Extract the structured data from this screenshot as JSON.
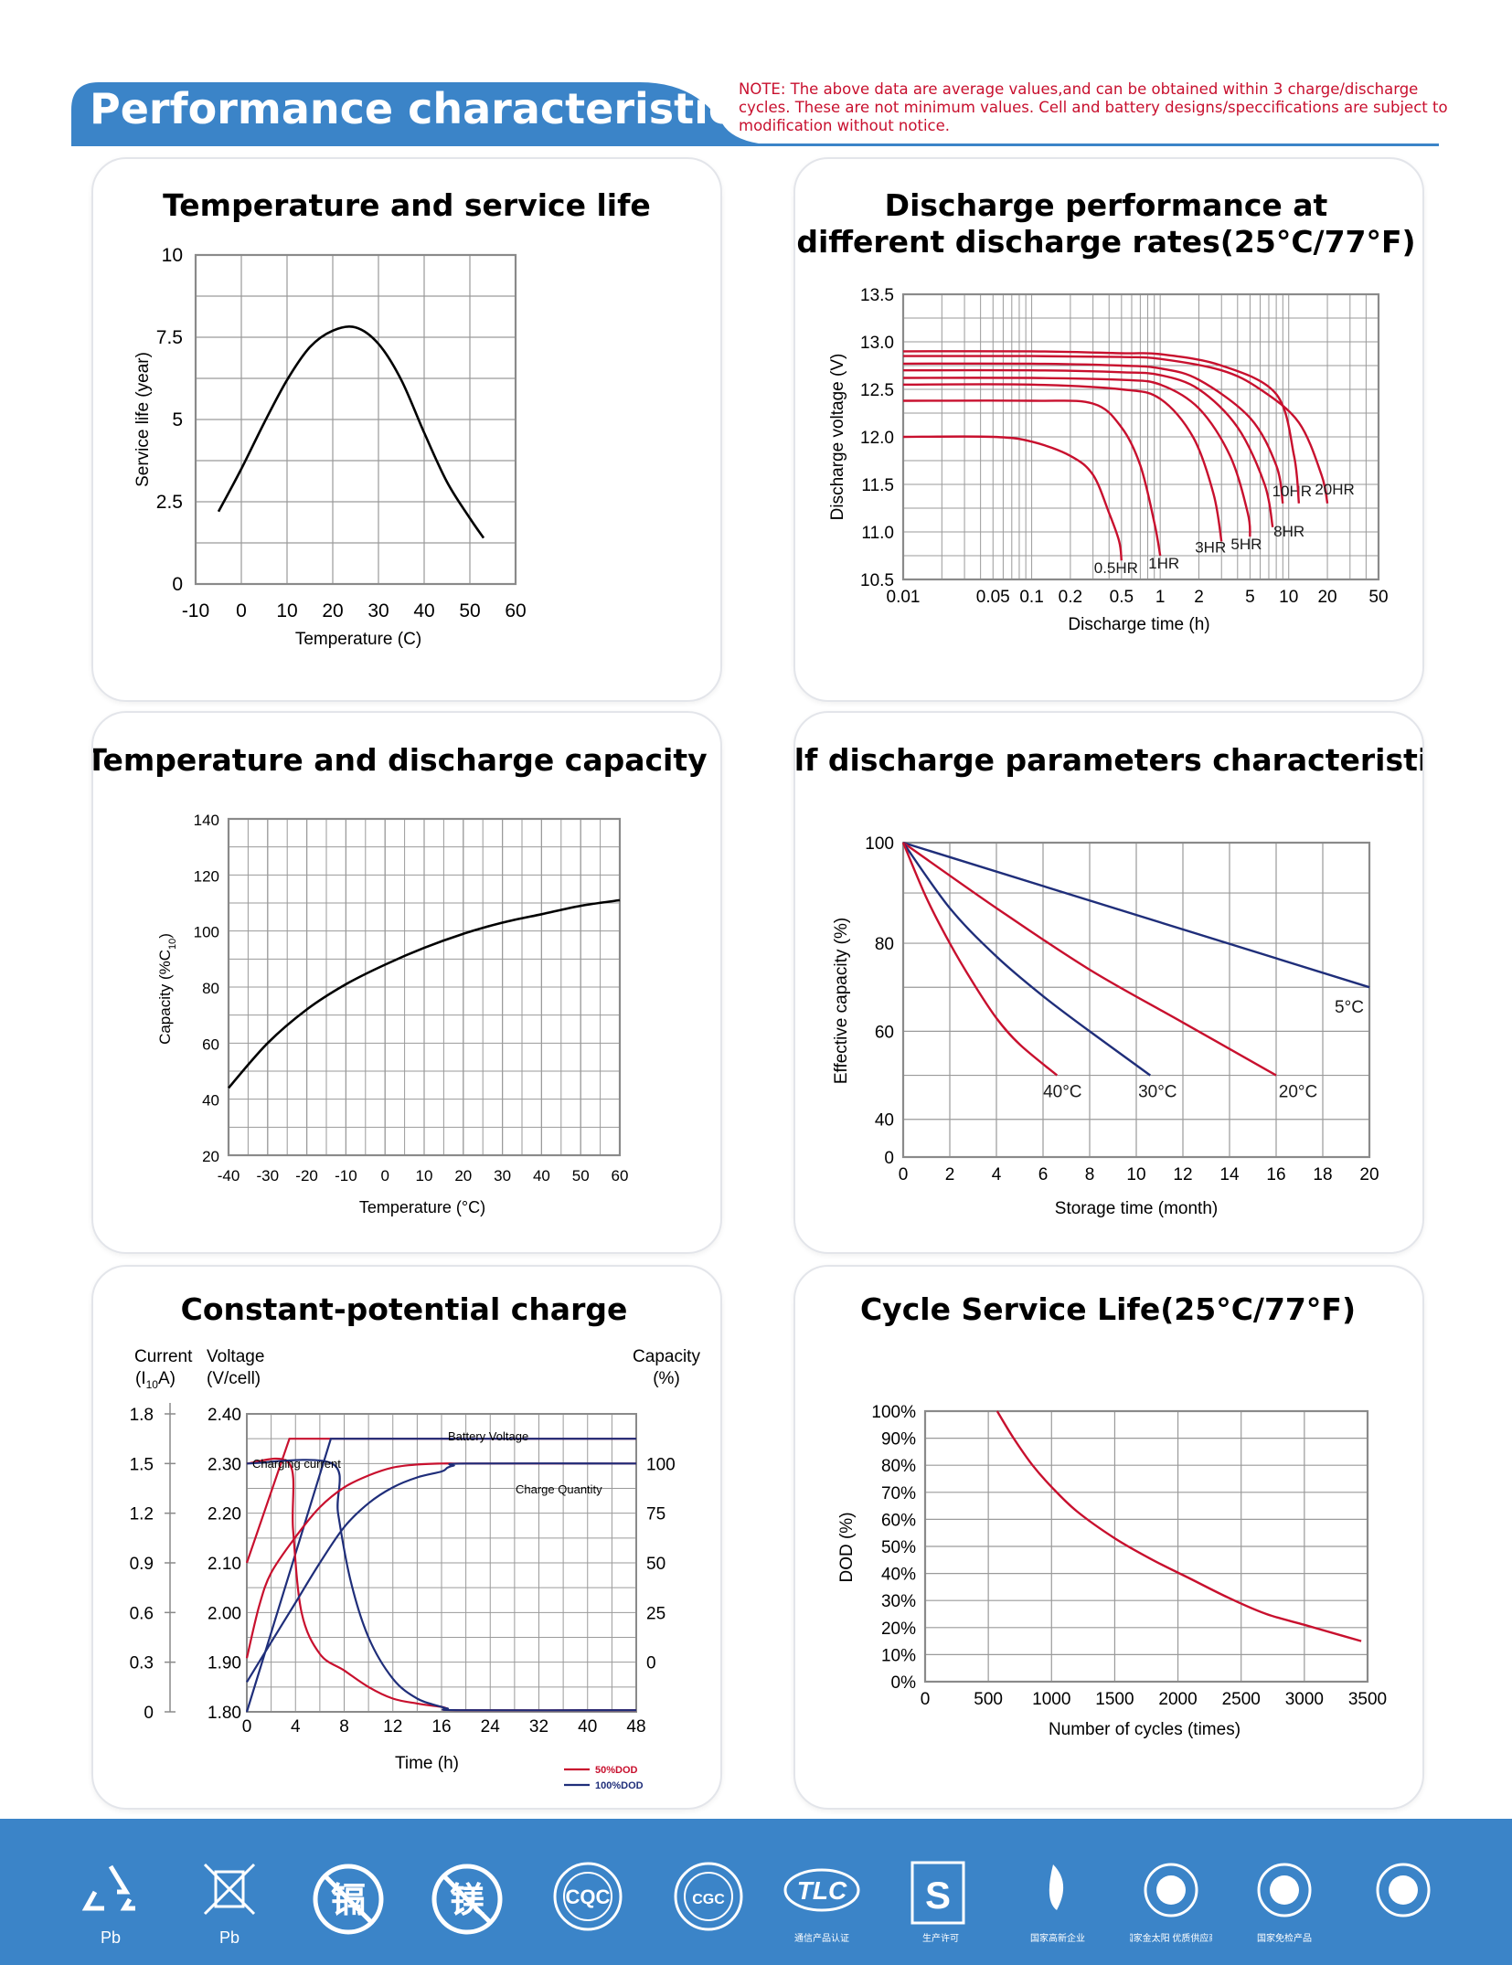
{
  "header": {
    "title": "Performance characteristics",
    "note": "NOTE: The above data are average values,and can be obtained within 3 charge/discharge cycles. These are not minimum values. Cell and battery designs/speccifications are subject to modification without notice."
  },
  "colors": {
    "accent_blue": "#3b84c8",
    "curve_red": "#c8102e",
    "curve_navy": "#1f2e7a",
    "grid": "#9a9a9a"
  },
  "chart_data": [
    {
      "id": "temp-life",
      "type": "line",
      "title": "Temperature and service life",
      "xlabel": "Temperature (C)",
      "ylabel": "Service life (year)",
      "xlim": [
        -10,
        60
      ],
      "ylim": [
        0,
        10
      ],
      "xticks": [
        "-10",
        "0",
        "10",
        "20",
        "30",
        "40",
        "50",
        "60"
      ],
      "yticks": [
        "0",
        "2.5",
        "5",
        "7.5",
        "10"
      ],
      "grid": true,
      "series": [
        {
          "color": "#000000",
          "x": [
            -5,
            0,
            5,
            10,
            15,
            20,
            25,
            30,
            35,
            40,
            45,
            50,
            53
          ],
          "y": [
            2.2,
            3.5,
            4.9,
            6.2,
            7.2,
            7.7,
            7.8,
            7.3,
            6.2,
            4.6,
            3.1,
            2.0,
            1.4
          ]
        }
      ]
    },
    {
      "id": "discharge-rates",
      "type": "line",
      "title_line1": "Discharge performance at",
      "title_line2": "different discharge rates(25°C/77°F)",
      "xlabel": "Discharge time (h)",
      "ylabel": "Discharge voltage (V)",
      "xscale": "log",
      "xlim": [
        0.01,
        50
      ],
      "ylim": [
        10.5,
        13.5
      ],
      "xticks": [
        "0.01",
        "0.05",
        "0.1",
        "0.2",
        "0.5",
        "1",
        "2",
        "5",
        "10",
        "20",
        "50"
      ],
      "yticks": [
        "10.5",
        "11.0",
        "11.5",
        "12.0",
        "12.5",
        "13.0",
        "13.5"
      ],
      "grid": true,
      "series": [
        {
          "name": "0.5HR",
          "x": [
            0.01,
            0.05,
            0.1,
            0.2,
            0.3,
            0.4,
            0.48,
            0.5
          ],
          "y": [
            12.0,
            12.0,
            11.95,
            11.8,
            11.6,
            11.2,
            10.9,
            10.7
          ]
        },
        {
          "name": "1HR",
          "x": [
            0.01,
            0.1,
            0.3,
            0.5,
            0.7,
            0.9,
            1.0
          ],
          "y": [
            12.38,
            12.38,
            12.35,
            12.1,
            11.7,
            11.1,
            10.75
          ]
        },
        {
          "name": "3HR",
          "x": [
            0.01,
            0.1,
            0.5,
            1.0,
            1.8,
            2.6,
            3.0
          ],
          "y": [
            12.55,
            12.55,
            12.5,
            12.4,
            12.0,
            11.4,
            10.9
          ]
        },
        {
          "name": "5HR",
          "x": [
            0.01,
            0.1,
            0.5,
            1.0,
            2.0,
            3.5,
            4.8,
            5.0
          ],
          "y": [
            12.62,
            12.62,
            12.6,
            12.55,
            12.3,
            11.8,
            11.2,
            10.95
          ]
        },
        {
          "name": "8HR",
          "x": [
            0.01,
            0.1,
            0.5,
            1.0,
            2.0,
            4.0,
            6.5,
            7.5
          ],
          "y": [
            12.7,
            12.7,
            12.68,
            12.65,
            12.5,
            12.1,
            11.5,
            11.05
          ]
        },
        {
          "name": "10HR",
          "x": [
            0.01,
            0.1,
            0.5,
            1.0,
            2.0,
            5.0,
            8.0,
            9.0
          ],
          "y": [
            12.77,
            12.77,
            12.75,
            12.72,
            12.6,
            12.2,
            11.7,
            11.3
          ]
        },
        {
          "name": "20HR",
          "x": [
            0.01,
            0.1,
            0.5,
            1.0,
            3.0,
            6.0,
            12.0,
            18.0,
            20.0
          ],
          "y": [
            12.85,
            12.85,
            12.84,
            12.82,
            12.7,
            12.5,
            12.15,
            11.6,
            11.3
          ]
        },
        {
          "x": [
            0.01,
            0.1,
            0.5,
            1.0,
            3.0,
            8.0,
            11.0,
            12.0
          ],
          "y": [
            12.9,
            12.9,
            12.88,
            12.87,
            12.75,
            12.45,
            11.8,
            11.3
          ]
        }
      ]
    },
    {
      "id": "temp-capacity",
      "type": "line",
      "title": "Temperature and discharge capacity",
      "xlabel": "Temperature (°C)",
      "ylabel": "Capacity (%C10)",
      "xlim": [
        -40,
        60
      ],
      "ylim": [
        20,
        140
      ],
      "xticks": [
        "-40",
        "-30",
        "-20",
        "-10",
        "0",
        "10",
        "20",
        "30",
        "40",
        "50",
        "60"
      ],
      "yticks": [
        "20",
        "40",
        "60",
        "80",
        "100",
        "120",
        "140"
      ],
      "grid": true,
      "series": [
        {
          "color": "#000000",
          "x": [
            -40,
            -30,
            -20,
            -10,
            0,
            10,
            20,
            30,
            40,
            50,
            60
          ],
          "y": [
            44,
            60,
            72,
            81,
            88,
            94,
            99,
            103,
            106,
            109,
            111
          ]
        }
      ]
    },
    {
      "id": "self-discharge",
      "type": "line",
      "title": "Self discharge parameters characteristics",
      "xlabel": "Storage time (month)",
      "ylabel": "Effective capacity (%)",
      "xlim": [
        0,
        20
      ],
      "xticks": [
        "0",
        "2",
        "4",
        "6",
        "8",
        "10",
        "12",
        "14",
        "16",
        "18",
        "20"
      ],
      "yticks": [
        "0",
        "40",
        "60",
        "80",
        "100"
      ],
      "grid": true,
      "series": [
        {
          "name": "5°C",
          "color": "#1f2e7a",
          "x": [
            0,
            20
          ],
          "y": [
            100,
            70
          ]
        },
        {
          "name": "20°C",
          "color": "#c8102e",
          "x": [
            0,
            4,
            8,
            12,
            16
          ],
          "y": [
            100,
            87,
            74,
            62,
            50
          ]
        },
        {
          "name": "30°C",
          "color": "#1f2e7a",
          "x": [
            0,
            2,
            4,
            6,
            8,
            10.6
          ],
          "y": [
            100,
            87,
            77,
            68,
            60,
            50
          ]
        },
        {
          "name": "40°C",
          "color": "#c8102e",
          "x": [
            0,
            1,
            2,
            3,
            4,
            5,
            6.6
          ],
          "y": [
            100,
            89,
            80,
            71,
            63,
            57,
            50
          ]
        }
      ]
    },
    {
      "id": "constant-charge",
      "type": "line",
      "title": "Constant-potential charge",
      "xlabel": "Time (h)",
      "axis_left_title_1": "Current",
      "axis_left_title_1b": "(I",
      "axis_left_title_sub": "10",
      "axis_left_title_1c": "A)",
      "axis_left_title_2": "Voltage",
      "axis_left_title_2b": "(V/cell)",
      "axis_right_title": "Capacity",
      "axis_right_title_b": "(%)",
      "current_ticks": [
        "0",
        "0.3",
        "0.6",
        "0.9",
        "1.2",
        "1.5",
        "1.8"
      ],
      "voltage_ticks": [
        "1.80",
        "1.90",
        "2.00",
        "2.10",
        "2.20",
        "2.30",
        "2.40"
      ],
      "capacity_ticks": [
        "0",
        "25",
        "50",
        "75",
        "100"
      ],
      "xticks": [
        "0",
        "4",
        "8",
        "12",
        "16",
        "24",
        "32",
        "40",
        "48"
      ],
      "labels": {
        "battery_voltage": "Battery Voltage",
        "charging_current": "Charging current",
        "charge_quantity": "Charge Quantity"
      },
      "legend": [
        {
          "name": "50%DOD",
          "color": "#c8102e"
        },
        {
          "name": "100%DOD",
          "color": "#1f2e7a"
        }
      ],
      "series": [
        {
          "name": "voltage-50",
          "x_pos": [
            0,
            3.5,
            4,
            48
          ],
          "voltage": [
            2.1,
            2.35,
            2.35,
            2.35
          ]
        },
        {
          "name": "voltage-100",
          "x_pos": [
            0,
            6.9,
            7.3,
            48
          ],
          "voltage": [
            1.8,
            2.35,
            2.35,
            2.35
          ]
        },
        {
          "name": "current-50",
          "x_pos": [
            0,
            3.5,
            3.8,
            4.5,
            6,
            8,
            10,
            12,
            14,
            16,
            17,
            19,
            48
          ],
          "current": [
            1.5,
            1.5,
            1.1,
            0.6,
            0.35,
            0.25,
            0.15,
            0.08,
            0.05,
            0.03,
            0.02,
            0.01,
            0.01
          ]
        },
        {
          "name": "current-100",
          "x_pos": [
            0,
            7,
            7.5,
            8.5,
            10,
            12,
            14,
            16,
            17,
            19,
            48
          ],
          "current": [
            1.5,
            1.5,
            1.2,
            0.8,
            0.45,
            0.2,
            0.08,
            0.03,
            0.02,
            0.01,
            0.01
          ]
        },
        {
          "name": "capacity-50",
          "x_pos": [
            0,
            1,
            2,
            4,
            6,
            8,
            10,
            12,
            14,
            16,
            18,
            20,
            48
          ],
          "capacity": [
            2,
            28,
            45,
            63,
            78,
            88,
            94,
            98,
            99.5,
            100,
            100,
            100,
            100
          ]
        },
        {
          "name": "capacity-100",
          "x_pos": [
            0,
            2,
            4,
            6,
            8,
            10,
            12,
            14,
            16,
            17,
            18,
            20,
            48
          ],
          "capacity": [
            -10,
            10,
            30,
            50,
            68,
            80,
            88,
            93,
            96,
            98,
            99,
            100,
            100
          ]
        }
      ]
    },
    {
      "id": "cycle-life",
      "type": "line",
      "title": "Cycle Service Life(25°C/77°F)",
      "xlabel": "Number of cycles (times)",
      "ylabel": "DOD  (%)",
      "xlim": [
        0,
        3500
      ],
      "ylim": [
        0,
        100
      ],
      "xticks": [
        "0",
        "500",
        "1000",
        "1500",
        "2000",
        "2500",
        "3000",
        "3500"
      ],
      "yticks": [
        "0%",
        "10%",
        "20%",
        "30%",
        "40%",
        "50%",
        "60%",
        "70%",
        "80%",
        "90%",
        "100%"
      ],
      "grid": true,
      "series": [
        {
          "color": "#c8102e",
          "x": [
            570,
            700,
            850,
            1000,
            1200,
            1500,
            1800,
            2100,
            2400,
            2700,
            3000,
            3300,
            3450
          ],
          "y": [
            100,
            90,
            80,
            72,
            63,
            53,
            45,
            38,
            31,
            25,
            21,
            17,
            15
          ]
        }
      ]
    }
  ],
  "footer": {
    "icons": [
      {
        "name": "recycle-icon",
        "label": "Pb"
      },
      {
        "name": "crossed-bin-icon",
        "label": "Pb"
      },
      {
        "name": "no-cadmium-icon",
        "glyph": "镉"
      },
      {
        "name": "no-mercury-icon",
        "glyph": "镁"
      },
      {
        "name": "cqc-icon",
        "glyph": "CQC"
      },
      {
        "name": "cgc-icon",
        "glyph": "CGC"
      },
      {
        "name": "tlc-icon",
        "glyph": "TLC",
        "label": "通信产品认证"
      },
      {
        "name": "quality-s-icon",
        "glyph": "S",
        "label": "生产许可"
      },
      {
        "name": "high-tech-icon",
        "label": "国家高新企业"
      },
      {
        "name": "golden-sun-icon",
        "label": "国家金太阳 优质供应商"
      },
      {
        "name": "exempt-inspection-icon",
        "label": "国家免检产品"
      },
      {
        "name": "famous-brand-icon"
      }
    ]
  }
}
